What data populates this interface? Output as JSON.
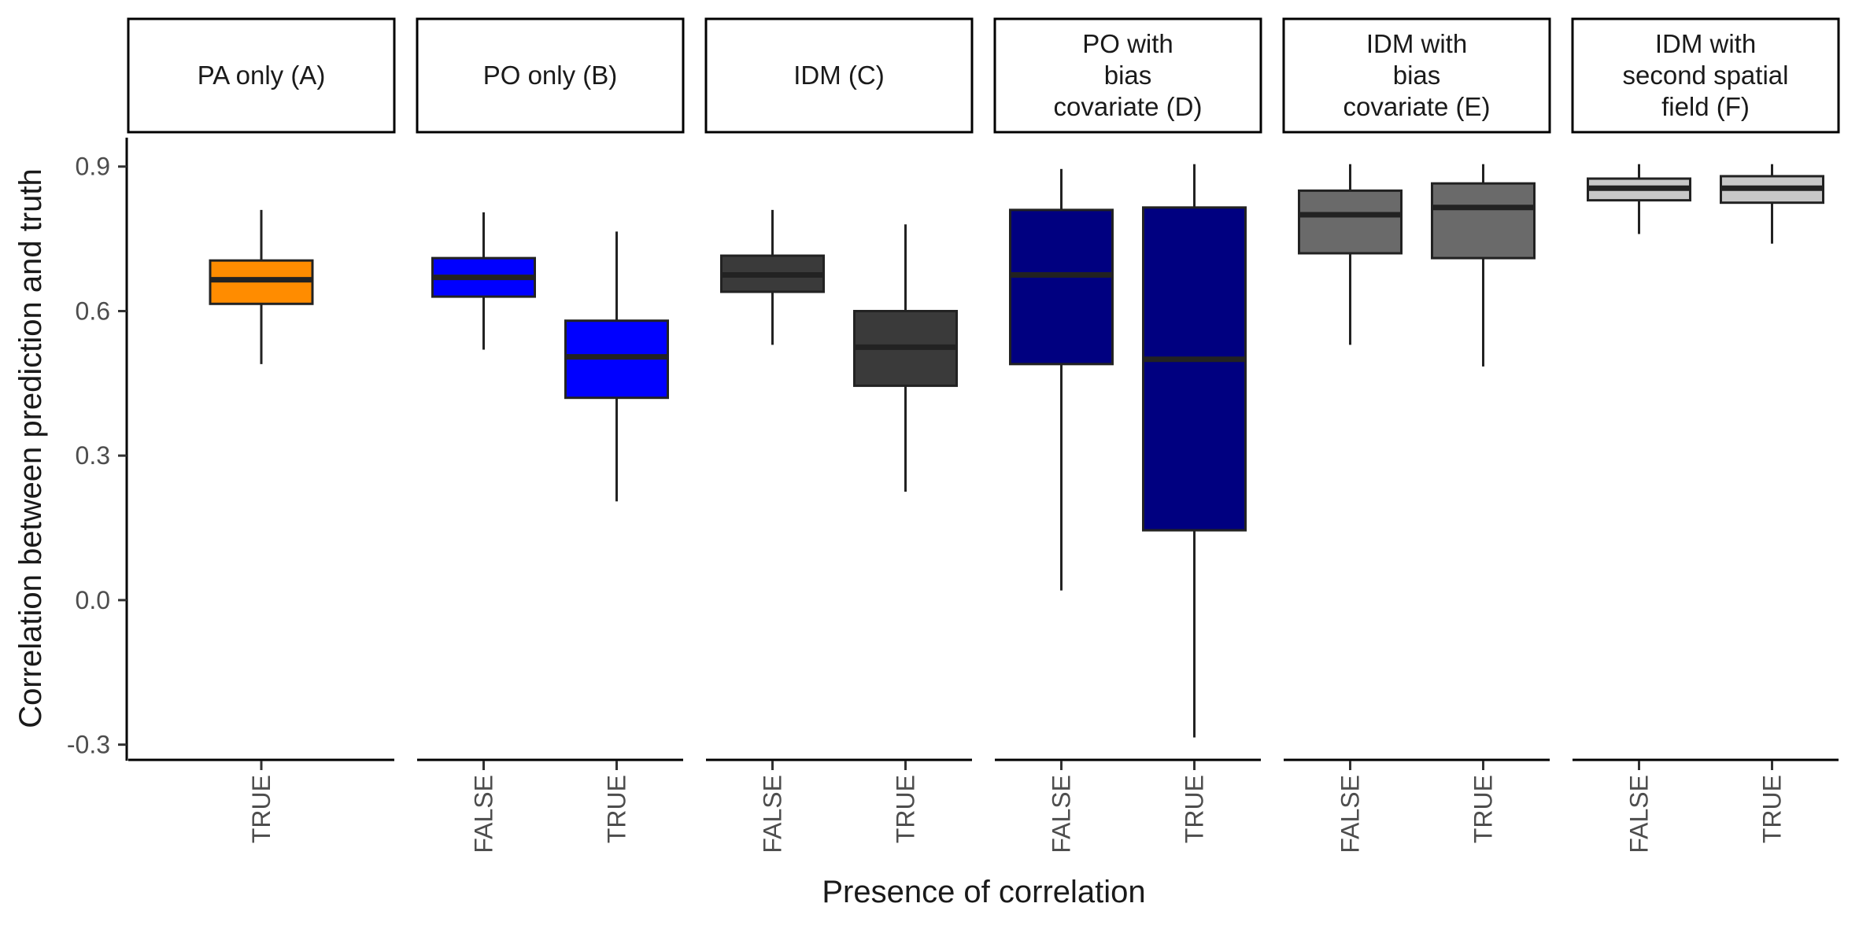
{
  "chart_data": {
    "type": "boxplot",
    "xlabel": "Presence of correlation",
    "ylabel": "Correlation between prediction and truth",
    "ylim": [
      -0.33,
      0.96
    ],
    "yticks": [
      -0.3,
      0.0,
      0.3,
      0.6,
      0.9
    ],
    "ytick_labels": [
      "-0.3",
      "0.0",
      "0.3",
      "0.6",
      "0.9"
    ],
    "grid": false,
    "legend": "none",
    "panels": [
      {
        "title": [
          "PA only (A)"
        ],
        "boxes": [
          {
            "category": "TRUE",
            "color": "#FF8C00",
            "min": 0.49,
            "q1": 0.615,
            "median": 0.665,
            "q3": 0.705,
            "max": 0.81
          }
        ]
      },
      {
        "title": [
          "PO only (B)"
        ],
        "boxes": [
          {
            "category": "FALSE",
            "color": "#0000FF",
            "min": 0.52,
            "q1": 0.63,
            "median": 0.67,
            "q3": 0.71,
            "max": 0.805
          },
          {
            "category": "TRUE",
            "color": "#0000FF",
            "min": 0.205,
            "q1": 0.42,
            "median": 0.505,
            "q3": 0.58,
            "max": 0.765
          }
        ]
      },
      {
        "title": [
          "IDM (C)"
        ],
        "boxes": [
          {
            "category": "FALSE",
            "color": "#3A3A3A",
            "min": 0.53,
            "q1": 0.64,
            "median": 0.675,
            "q3": 0.715,
            "max": 0.81
          },
          {
            "category": "TRUE",
            "color": "#3A3A3A",
            "min": 0.225,
            "q1": 0.445,
            "median": 0.525,
            "q3": 0.6,
            "max": 0.78
          }
        ]
      },
      {
        "title": [
          "PO with",
          "bias",
          "covariate (D)"
        ],
        "boxes": [
          {
            "category": "FALSE",
            "color": "#000080",
            "min": 0.02,
            "q1": 0.49,
            "median": 0.675,
            "q3": 0.81,
            "max": 0.895
          },
          {
            "category": "TRUE",
            "color": "#000080",
            "min": -0.285,
            "q1": 0.145,
            "median": 0.5,
            "q3": 0.815,
            "max": 0.905
          }
        ]
      },
      {
        "title": [
          "IDM with",
          "bias",
          "covariate (E)"
        ],
        "boxes": [
          {
            "category": "FALSE",
            "color": "#6A6A6A",
            "min": 0.53,
            "q1": 0.72,
            "median": 0.8,
            "q3": 0.85,
            "max": 0.905
          },
          {
            "category": "TRUE",
            "color": "#6A6A6A",
            "min": 0.485,
            "q1": 0.71,
            "median": 0.815,
            "q3": 0.865,
            "max": 0.905
          }
        ]
      },
      {
        "title": [
          "IDM with",
          "second spatial",
          "field (F)"
        ],
        "boxes": [
          {
            "category": "FALSE",
            "color": "#C8C8C8",
            "min": 0.76,
            "q1": 0.83,
            "median": 0.855,
            "q3": 0.875,
            "max": 0.905
          },
          {
            "category": "TRUE",
            "color": "#C8C8C8",
            "min": 0.74,
            "q1": 0.825,
            "median": 0.855,
            "q3": 0.88,
            "max": 0.905
          }
        ]
      }
    ]
  }
}
